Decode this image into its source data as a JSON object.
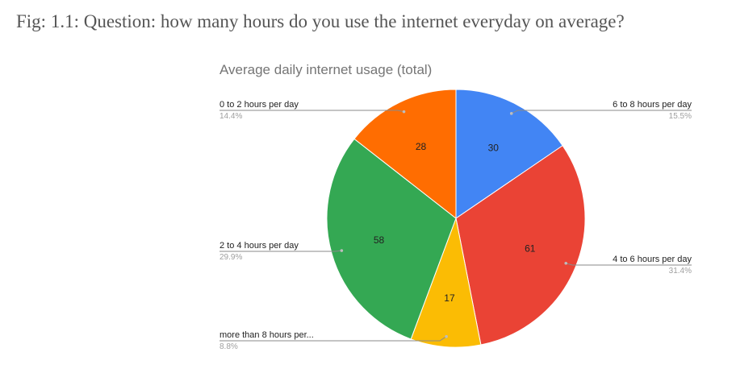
{
  "caption": "Fig: 1.1: Question: how many hours do you use the internet everyday on average?",
  "chart_data": {
    "type": "pie",
    "title": "Average daily internet usage (total)",
    "slices": [
      {
        "label": "6 to 8 hours per day",
        "value": 30,
        "percent": "15.5%",
        "color": "#4285f4"
      },
      {
        "label": "4 to 6 hours per day",
        "value": 61,
        "percent": "31.4%",
        "color": "#ea4335"
      },
      {
        "label": "more than 8 hours per...",
        "value": 17,
        "percent": "8.8%",
        "color": "#fbbc04"
      },
      {
        "label": "2 to 4 hours per day",
        "value": 58,
        "percent": "29.9%",
        "color": "#34a853"
      },
      {
        "label": "0 to 2 hours per day",
        "value": 28,
        "percent": "14.4%",
        "color": "#ff6d01"
      }
    ]
  }
}
